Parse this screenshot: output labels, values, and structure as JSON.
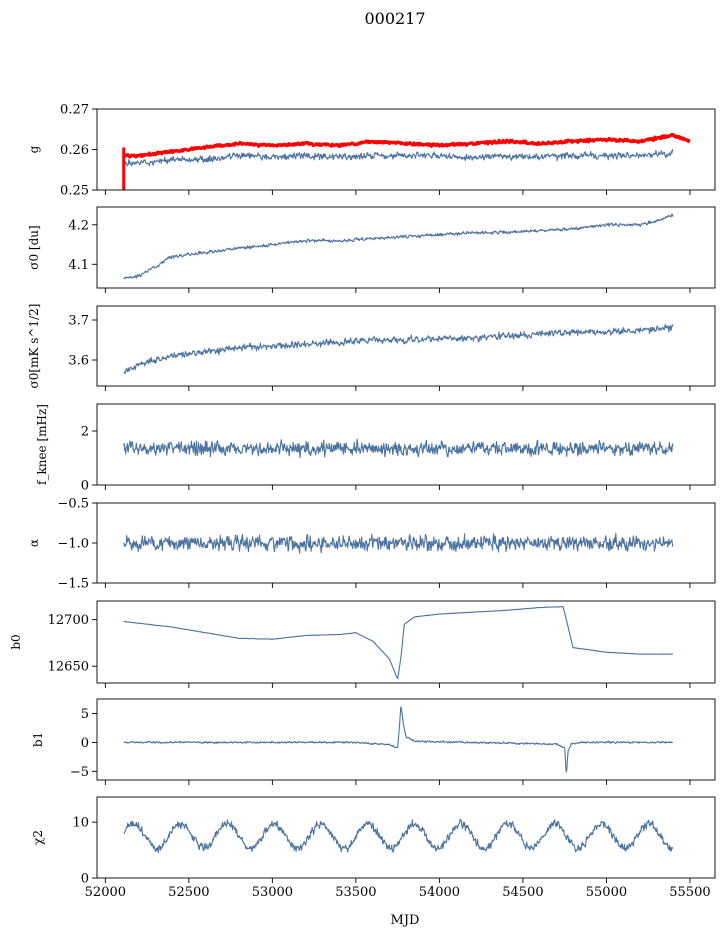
{
  "figure": {
    "suptitle": "000217",
    "xlabel": "MJD",
    "xlim": [
      51950,
      55650
    ],
    "xticks": [
      52000,
      52500,
      53000,
      53500,
      54000,
      54500,
      55000,
      55500
    ],
    "xtick_labels": [
      "52000",
      "52500",
      "53000",
      "53500",
      "54000",
      "54500",
      "55000",
      "55500"
    ]
  },
  "colors": {
    "series": "#4c72a0",
    "overlay": "#ff0000",
    "axes": "#000000"
  },
  "chart_data": [
    {
      "type": "line",
      "ylabel": "g",
      "ylim": [
        0.25,
        0.27
      ],
      "yticks": [
        0.25,
        0.26,
        0.27
      ],
      "ytick_labels": [
        "0.25",
        "0.26",
        "0.27"
      ],
      "series": [
        {
          "x": [
            52110,
            52200,
            52400,
            52600,
            52800,
            53000,
            53200,
            53400,
            53600,
            53800,
            54000,
            54200,
            54400,
            54600,
            54800,
            55000,
            55200,
            55400
          ],
          "values": [
            0.2565,
            0.2565,
            0.2575,
            0.2575,
            0.2585,
            0.258,
            0.2585,
            0.258,
            0.2585,
            0.2585,
            0.2585,
            0.258,
            0.2585,
            0.258,
            0.2585,
            0.2585,
            0.2585,
            0.259
          ],
          "noise": 0.0008,
          "seed": 1
        },
        {
          "x": [
            52110,
            52200,
            52400,
            52600,
            52800,
            53000,
            53200,
            53400,
            53600,
            53800,
            54000,
            54200,
            54400,
            54600,
            54800,
            55000,
            55200,
            55400,
            55500
          ],
          "values": [
            0.2585,
            0.2585,
            0.2595,
            0.2605,
            0.2615,
            0.261,
            0.2615,
            0.261,
            0.262,
            0.2615,
            0.261,
            0.2615,
            0.262,
            0.2615,
            0.262,
            0.2625,
            0.262,
            0.2635,
            0.262
          ],
          "noise": 0.0003,
          "seed": 2,
          "overlay": true,
          "lw": 3
        }
      ]
    },
    {
      "type": "line",
      "ylabel": "σ0 [du]",
      "ylim": [
        4.04,
        4.245
      ],
      "yticks": [
        4.1,
        4.2
      ],
      "ytick_labels": [
        "4.1",
        "4.2"
      ],
      "series": [
        {
          "x": [
            52110,
            52200,
            52400,
            52600,
            52800,
            53000,
            53200,
            53400,
            53600,
            53800,
            54000,
            54200,
            54400,
            54600,
            54800,
            55000,
            55200,
            55300,
            55400
          ],
          "values": [
            4.065,
            4.07,
            4.12,
            4.13,
            4.14,
            4.15,
            4.16,
            4.16,
            4.165,
            4.17,
            4.175,
            4.18,
            4.18,
            4.185,
            4.19,
            4.2,
            4.2,
            4.21,
            4.225
          ],
          "noise": 0.004,
          "seed": 3
        }
      ]
    },
    {
      "type": "line",
      "ylabel": "σ0[mK s^1/2]",
      "ylim": [
        3.535,
        3.735
      ],
      "yticks": [
        3.6,
        3.7
      ],
      "ytick_labels": [
        "3.6",
        "3.7"
      ],
      "series": [
        {
          "x": [
            52110,
            52200,
            52400,
            52600,
            52800,
            53000,
            53200,
            53400,
            53600,
            53800,
            54000,
            54200,
            54400,
            54600,
            54800,
            55000,
            55200,
            55400
          ],
          "values": [
            3.57,
            3.59,
            3.61,
            3.62,
            3.63,
            3.635,
            3.64,
            3.645,
            3.65,
            3.65,
            3.655,
            3.655,
            3.66,
            3.665,
            3.67,
            3.67,
            3.675,
            3.68
          ],
          "noise": 0.008,
          "seed": 4
        }
      ]
    },
    {
      "type": "line",
      "ylabel": "f_knee [mHz]",
      "ylim": [
        0,
        3.0
      ],
      "yticks": [
        0,
        2
      ],
      "ytick_labels": [
        "0",
        "2"
      ],
      "series": [
        {
          "x": [
            52110,
            55400
          ],
          "values": [
            1.35,
            1.35
          ],
          "noise": 0.25,
          "seed": 5
        }
      ]
    },
    {
      "type": "line",
      "ylabel": "α",
      "ylim": [
        -1.5,
        -0.5
      ],
      "yticks": [
        -1.5,
        -1.0,
        -0.5
      ],
      "ytick_labels": [
        "−1.5",
        "−1.0",
        "−0.5"
      ],
      "series": [
        {
          "x": [
            52110,
            55400
          ],
          "values": [
            -1.0,
            -1.0
          ],
          "noise": 0.09,
          "seed": 6
        }
      ]
    },
    {
      "type": "line",
      "ylabel": "b0",
      "ylim": [
        12632,
        12720
      ],
      "yticks": [
        12650,
        12700
      ],
      "ytick_labels": [
        "12650",
        "12700"
      ],
      "series": [
        {
          "x": [
            52110,
            52400,
            52800,
            53000,
            53200,
            53400,
            53500,
            53600,
            53700,
            53750,
            53770,
            53790,
            53850,
            54000,
            54200,
            54400,
            54600,
            54740,
            54760,
            54800,
            55000,
            55200,
            55400
          ],
          "values": [
            12698,
            12692,
            12680,
            12679,
            12683,
            12684,
            12686,
            12677,
            12658,
            12636,
            12660,
            12695,
            12703,
            12706,
            12708,
            12710,
            12713,
            12714,
            12700,
            12670,
            12665,
            12663,
            12663
          ],
          "noise": 0.2,
          "seed": 7
        }
      ]
    },
    {
      "type": "line",
      "ylabel": "b1",
      "ylim": [
        -6.5,
        7.5
      ],
      "yticks": [
        -5,
        0,
        5
      ],
      "ytick_labels": [
        "−5",
        "0",
        "5"
      ],
      "series": [
        {
          "x": [
            52110,
            53500,
            53700,
            53750,
            53760,
            53770,
            53785,
            53800,
            53850,
            54700,
            54750,
            54760,
            54770,
            54790,
            54850,
            55400
          ],
          "values": [
            0.0,
            0.0,
            -0.4,
            -1.0,
            2.5,
            6.5,
            3.0,
            1.0,
            0.2,
            -0.3,
            -1.0,
            -5.5,
            -1.5,
            -0.3,
            0.0,
            0.0
          ],
          "noise": 0.15,
          "seed": 8
        }
      ]
    },
    {
      "type": "line",
      "ylabel": "χ2",
      "ylim": [
        0,
        14.5
      ],
      "yticks": [
        0,
        10
      ],
      "ytick_labels": [
        "0",
        "10"
      ],
      "series": [
        {
          "x": [
            52110,
            55400
          ],
          "values": [
            7.5,
            7.5
          ],
          "noise": 0.7,
          "seed": 9,
          "osc_amp": 2.2,
          "osc_period": 280,
          "osc_phase": 52100
        }
      ]
    }
  ]
}
